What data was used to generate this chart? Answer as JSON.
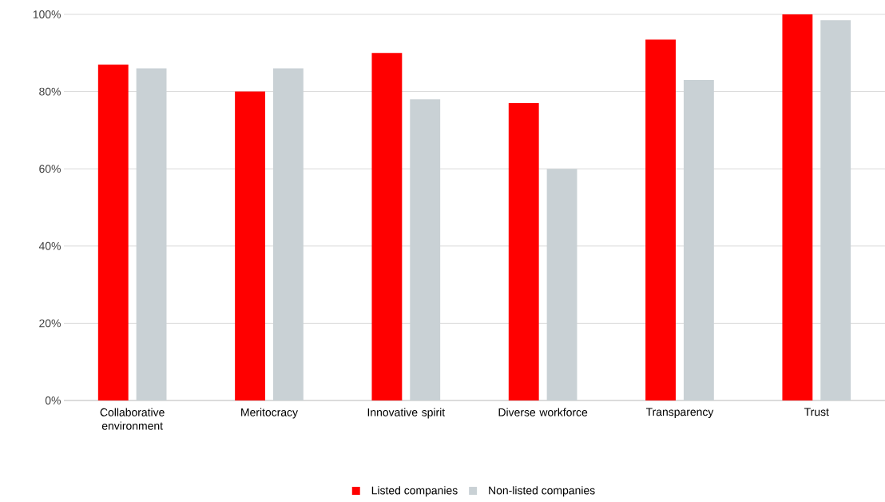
{
  "chart_data": {
    "type": "bar",
    "categories": [
      "Collaborative environment",
      "Meritocracy",
      "Innovative spirit",
      "Diverse workforce",
      "Transparency",
      "Trust"
    ],
    "series": [
      {
        "name": "Listed companies",
        "color": "#ff0000",
        "values": [
          87,
          80,
          90,
          77,
          93.5,
          100
        ]
      },
      {
        "name": "Non-listed companies",
        "color": "#c9d1d5",
        "values": [
          86,
          86,
          78,
          60,
          83,
          98.5
        ]
      }
    ],
    "ylim": [
      0,
      100
    ],
    "yticks": [
      {
        "value": 0,
        "label": "0%"
      },
      {
        "value": 20,
        "label": "20%"
      },
      {
        "value": 40,
        "label": "40%"
      },
      {
        "value": 60,
        "label": "60%"
      },
      {
        "value": 80,
        "label": "80%"
      },
      {
        "value": 100,
        "label": "100%"
      }
    ],
    "grid": "y",
    "legend": "bottom"
  }
}
